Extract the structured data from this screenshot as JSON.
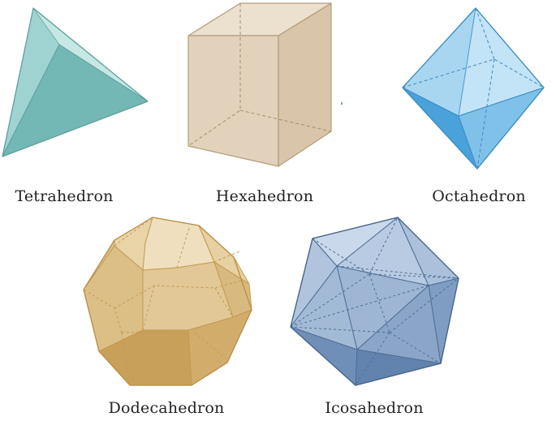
{
  "solids": [
    {
      "id": "tetrahedron",
      "label": "Tetrahedron",
      "color": "#7fbfbe"
    },
    {
      "id": "hexahedron",
      "label": "Hexahedron",
      "color": "#d8c3a6"
    },
    {
      "id": "octahedron",
      "label": "Octahedron",
      "color": "#7fc1e6"
    },
    {
      "id": "dodecahedron",
      "label": "Dodecahedron",
      "color": "#d9b978"
    },
    {
      "id": "icosahedron",
      "label": "Icosahedron",
      "color": "#8ea9cb"
    }
  ]
}
